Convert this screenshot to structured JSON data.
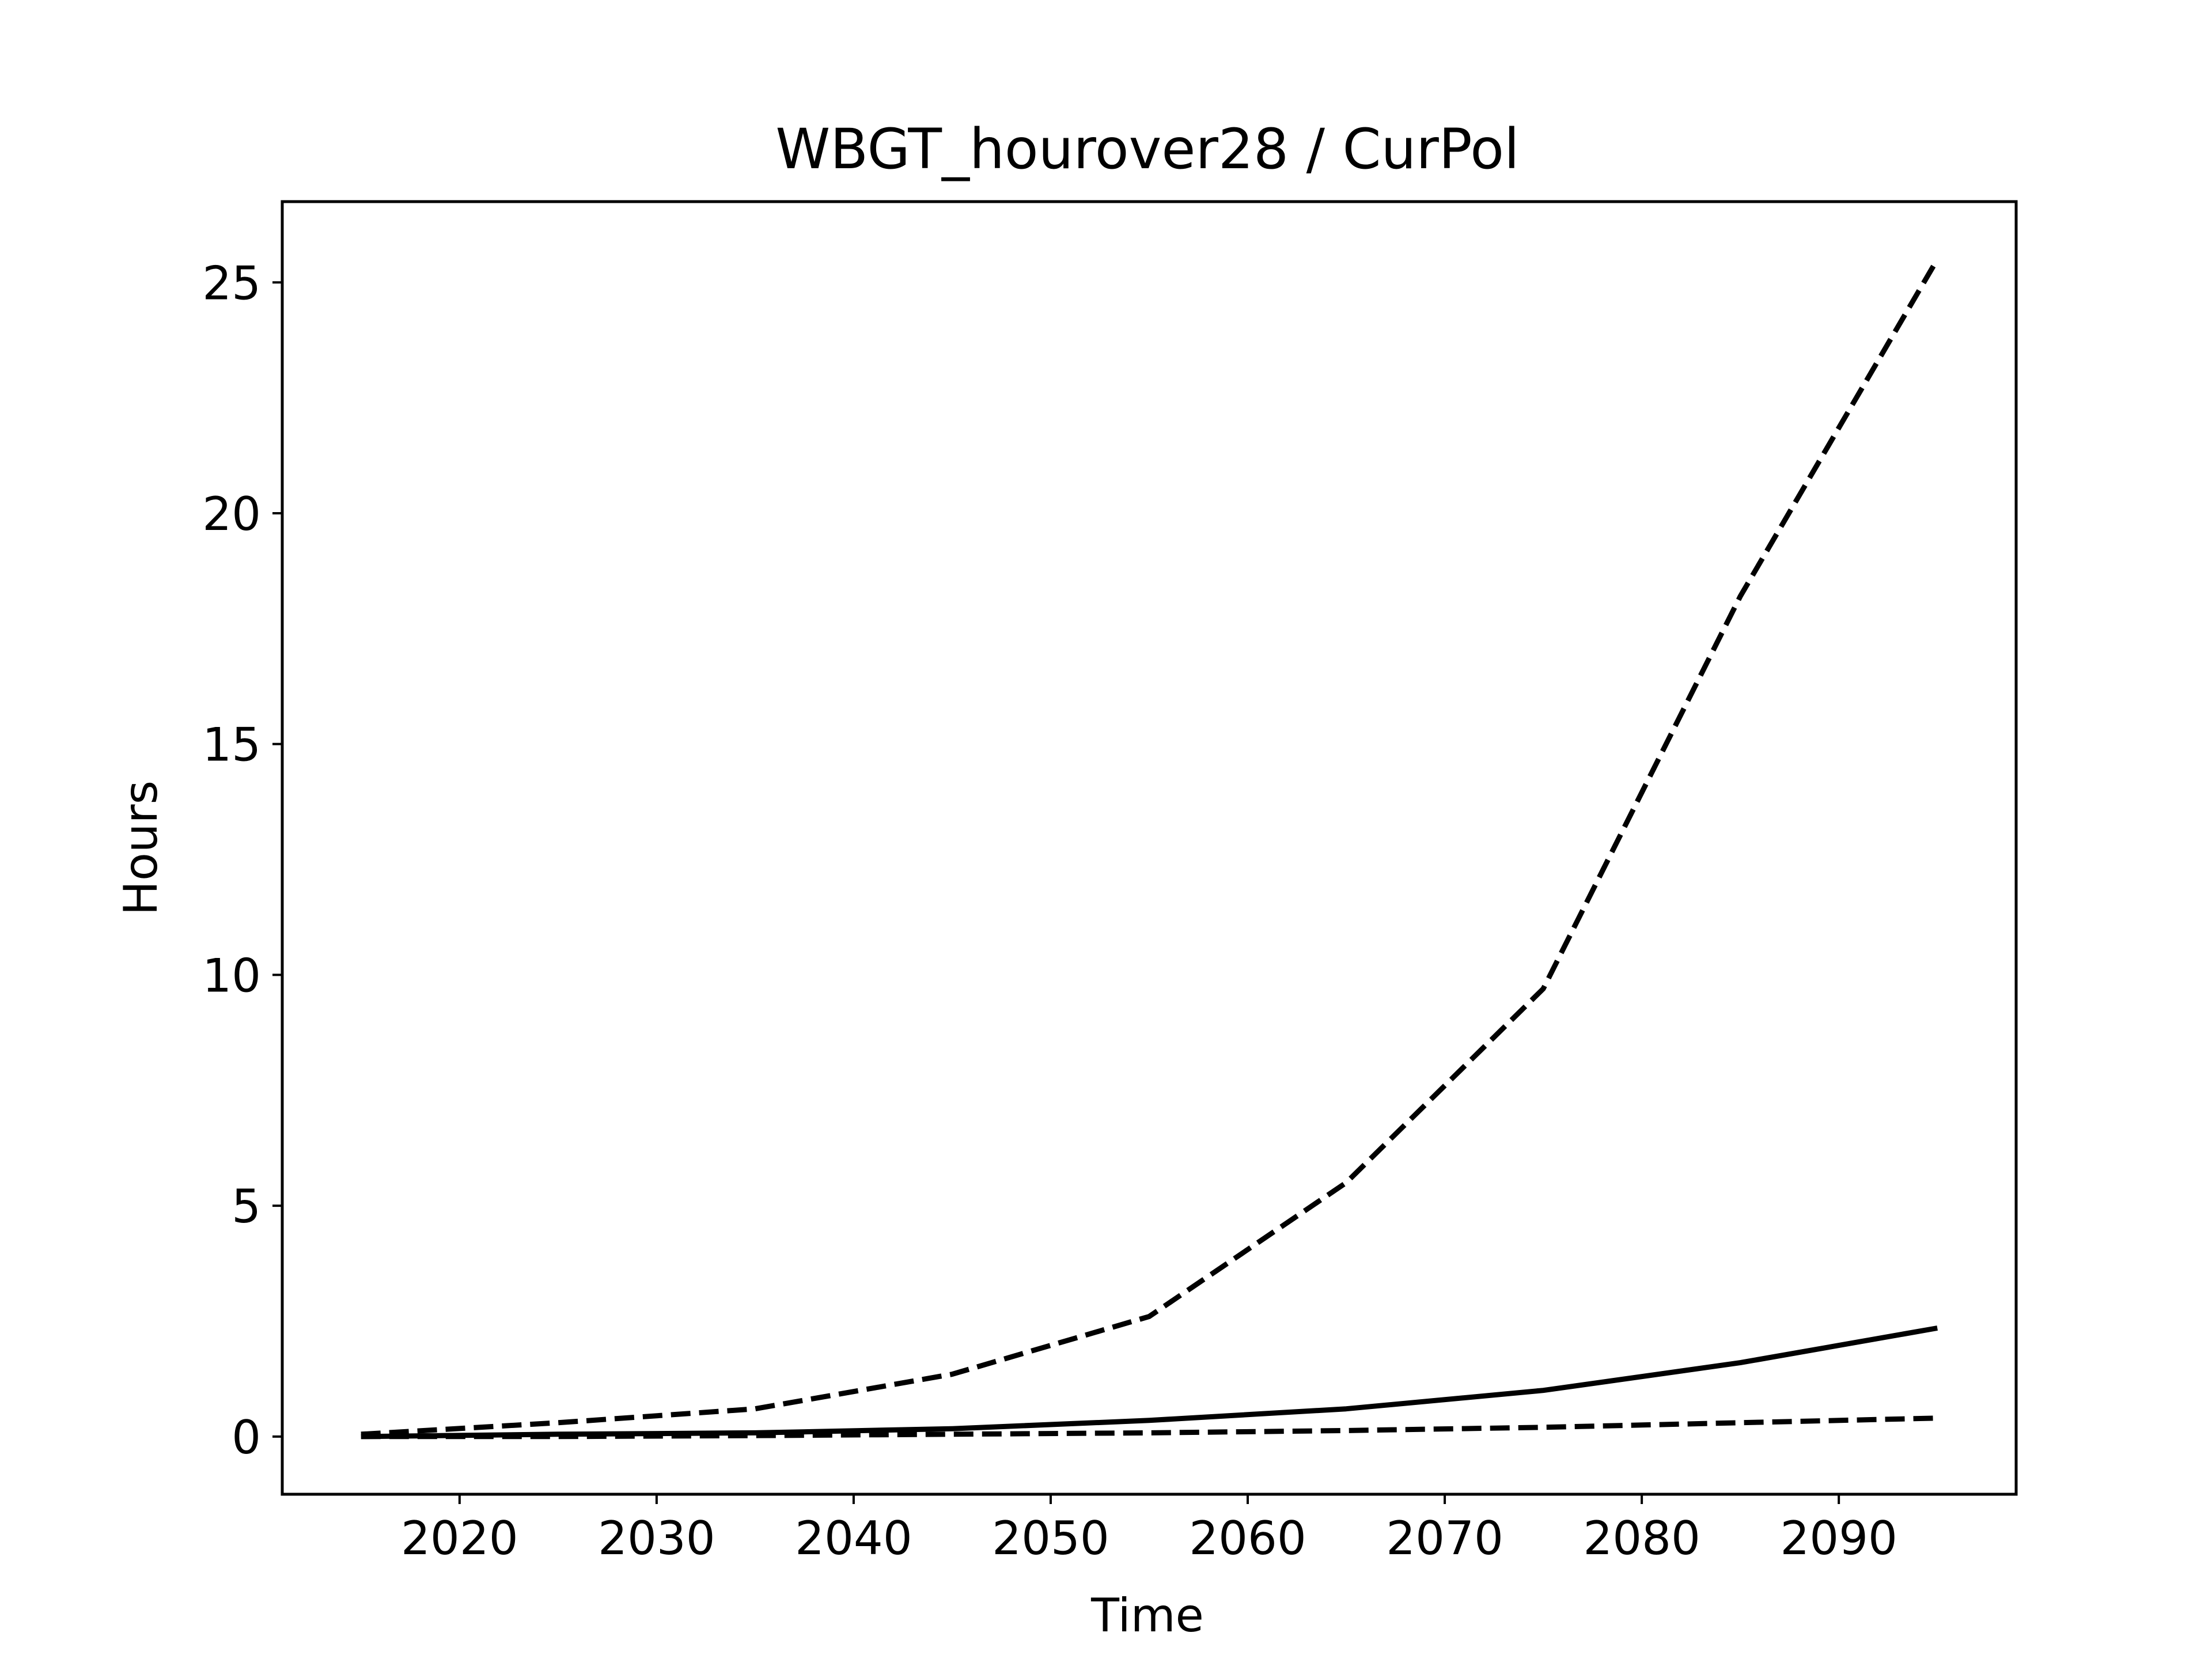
{
  "chart_data": {
    "type": "line",
    "title": "WBGT_hourover28 / CurPol",
    "xlabel": "Time",
    "ylabel": "Hours",
    "xlim": [
      2011,
      2099
    ],
    "ylim": [
      -1.25,
      26.75
    ],
    "xticks": [
      2020,
      2030,
      2040,
      2050,
      2060,
      2070,
      2080,
      2090
    ],
    "yticks": [
      0,
      5,
      10,
      15,
      20,
      25
    ],
    "grid": false,
    "legend": "none",
    "line_color": "#000000",
    "x": [
      2015,
      2025,
      2035,
      2045,
      2055,
      2065,
      2075,
      2085,
      2095
    ],
    "series": [
      {
        "style": "solid",
        "values": [
          0.0,
          0.05,
          0.08,
          0.17,
          0.35,
          0.6,
          1.0,
          1.6,
          2.35
        ]
      },
      {
        "style": "dashed",
        "values": [
          0.05,
          0.3,
          0.6,
          1.35,
          2.6,
          5.5,
          9.7,
          18.2,
          25.5
        ]
      },
      {
        "style": "dashed",
        "values": [
          0.0,
          0.0,
          0.02,
          0.05,
          0.08,
          0.13,
          0.2,
          0.3,
          0.4
        ]
      }
    ]
  }
}
